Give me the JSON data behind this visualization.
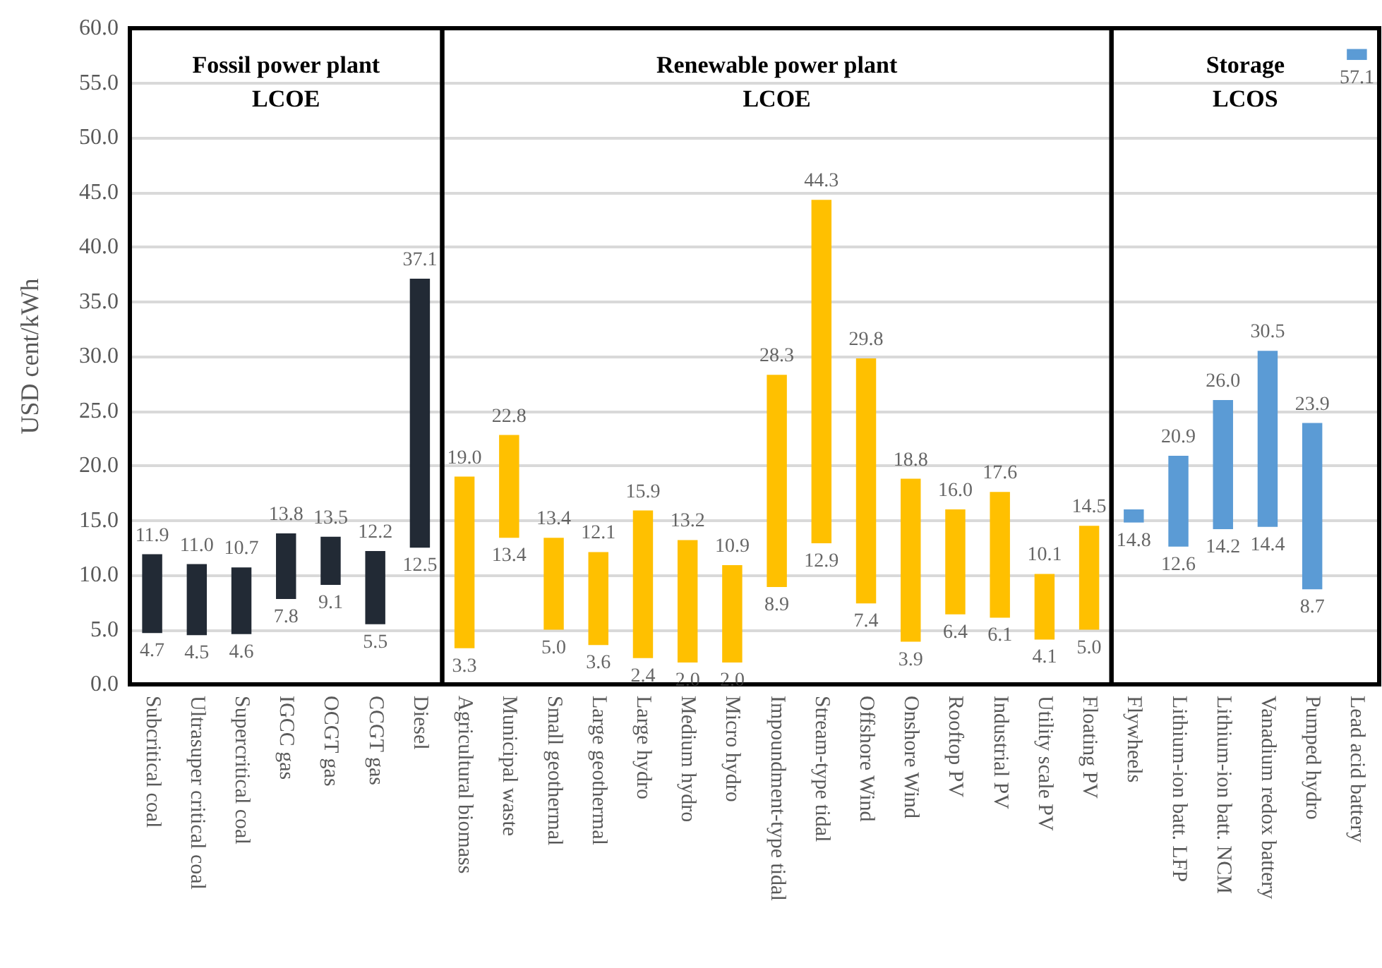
{
  "chart_data": {
    "type": "bar",
    "ylabel": "USD cent/kWh",
    "categories": [
      "Subcritical coal",
      "Ultrasuper critical coal",
      "Supercritical coal",
      "IGCC gas",
      "OCGT gas",
      "CCGT gas",
      "Diesel",
      "Agricultural biomass",
      "Municipal waste",
      "Small geothermal",
      "Large geothermal",
      "Large hydro",
      "Medium hydro",
      "Micro hydro",
      "Impoundment-type tidal",
      "Stream-type tidal",
      "Offshore Wind",
      "Onshore Wind",
      "Rooftop PV",
      "Industrial PV",
      "Utility scale PV",
      "Floating PV",
      "Flywheels",
      "Lithium-ion batt. LFP",
      "Lithium-ion batt. NCM",
      "Vanadium redox battery",
      "Pumped hydro",
      "Lead acid battery"
    ],
    "base": [
      4.7,
      4.5,
      4.6,
      7.8,
      9.1,
      5.5,
      12.5,
      3.3,
      13.4,
      5.0,
      3.6,
      2.4,
      2.0,
      2.0,
      8.9,
      12.9,
      7.4,
      3.9,
      6.4,
      6.1,
      4.1,
      5.0,
      14.8,
      12.6,
      14.2,
      14.4,
      8.7,
      57.1
    ],
    "values": [
      7.2,
      6.5,
      6.1,
      6.0,
      4.4,
      6.7,
      24.6,
      15.7,
      9.4,
      8.4,
      8.5,
      13.5,
      11.2,
      8.9,
      19.4,
      31.4,
      22.4,
      14.9,
      9.6,
      11.5,
      6.0,
      9.5,
      1.2,
      8.3,
      11.8,
      16.1,
      15.2,
      1.0
    ],
    "colors": [
      "#222a35",
      "#222a35",
      "#222a35",
      "#222a35",
      "#222a35",
      "#222a35",
      "#222a35",
      "#ffc000",
      "#ffc000",
      "#ffc000",
      "#ffc000",
      "#ffc000",
      "#ffc000",
      "#ffc000",
      "#ffc000",
      "#ffc000",
      "#ffc000",
      "#ffc000",
      "#ffc000",
      "#ffc000",
      "#ffc000",
      "#ffc000",
      "#5b9bd5",
      "#5b9bd5",
      "#5b9bd5",
      "#5b9bd5",
      "#5b9bd5",
      "#5b9bd5"
    ],
    "ylim": [
      0,
      60
    ],
    "yticks": [
      {
        "value": 0,
        "label": "0.0"
      },
      {
        "value": 5,
        "label": "5.0"
      },
      {
        "value": 10,
        "label": "10.0"
      },
      {
        "value": 15,
        "label": "15.0"
      },
      {
        "value": 20,
        "label": "20.0"
      },
      {
        "value": 25,
        "label": "25.0"
      },
      {
        "value": 30,
        "label": "30.0"
      },
      {
        "value": 35,
        "label": "35.0"
      },
      {
        "value": 40,
        "label": "40.0"
      },
      {
        "value": 45,
        "label": "45.0"
      },
      {
        "value": 50,
        "label": "50.0"
      },
      {
        "value": 55,
        "label": "55.0"
      },
      {
        "value": 60,
        "label": "60.0"
      }
    ],
    "grid": "y",
    "bands": [
      {
        "axis": "x",
        "from": "Subcritical coal",
        "to": "Diesel",
        "label": "Fossil power plant\nLCOE"
      },
      {
        "axis": "x",
        "from": "Agricultural biomass",
        "to": "Floating PV",
        "label": "Renewable power plant\nLCOE"
      },
      {
        "axis": "x",
        "from": "Flywheels",
        "to": "Lead acid battery",
        "label": "Storage\nLCOS"
      }
    ],
    "annotations": [
      {
        "text": "11.9",
        "x": "Subcritical coal",
        "y": 11.9
      },
      {
        "text": "4.7",
        "x": "Subcritical coal",
        "y": 4.7
      },
      {
        "text": "11.0",
        "x": "Ultrasuper critical coal",
        "y": 11.0
      },
      {
        "text": "4.5",
        "x": "Ultrasuper critical coal",
        "y": 4.5
      },
      {
        "text": "10.7",
        "x": "Supercritical coal",
        "y": 10.7
      },
      {
        "text": "4.6",
        "x": "Supercritical coal",
        "y": 4.6
      },
      {
        "text": "13.8",
        "x": "IGCC gas",
        "y": 13.8
      },
      {
        "text": "7.8",
        "x": "IGCC gas",
        "y": 7.8
      },
      {
        "text": "13.5",
        "x": "OCGT gas",
        "y": 13.5
      },
      {
        "text": "9.1",
        "x": "OCGT gas",
        "y": 9.1
      },
      {
        "text": "12.2",
        "x": "CCGT gas",
        "y": 12.2
      },
      {
        "text": "5.5",
        "x": "CCGT gas",
        "y": 5.5
      },
      {
        "text": "37.1",
        "x": "Diesel",
        "y": 37.1
      },
      {
        "text": "12.5",
        "x": "Diesel",
        "y": 12.5
      },
      {
        "text": "19.0",
        "x": "Agricultural biomass",
        "y": 19.0
      },
      {
        "text": "3.3",
        "x": "Agricultural biomass",
        "y": 3.3
      },
      {
        "text": "22.8",
        "x": "Municipal waste",
        "y": 22.8
      },
      {
        "text": "13.4",
        "x": "Municipal waste",
        "y": 13.4
      },
      {
        "text": "13.4",
        "x": "Small geothermal",
        "y": 13.4
      },
      {
        "text": "5.0",
        "x": "Small geothermal",
        "y": 5.0
      },
      {
        "text": "12.1",
        "x": "Large geothermal",
        "y": 12.1
      },
      {
        "text": "3.6",
        "x": "Large geothermal",
        "y": 3.6
      },
      {
        "text": "15.9",
        "x": "Large hydro",
        "y": 15.9
      },
      {
        "text": "2.4",
        "x": "Large hydro",
        "y": 2.4
      },
      {
        "text": "13.2",
        "x": "Medium hydro",
        "y": 13.2
      },
      {
        "text": "2.0",
        "x": "Medium hydro",
        "y": 2.0
      },
      {
        "text": "10.9",
        "x": "Micro hydro",
        "y": 10.9
      },
      {
        "text": "2.0",
        "x": "Micro hydro",
        "y": 2.0
      },
      {
        "text": "28.3",
        "x": "Impoundment-type tidal",
        "y": 28.3
      },
      {
        "text": "8.9",
        "x": "Impoundment-type tidal",
        "y": 8.9
      },
      {
        "text": "44.3",
        "x": "Stream-type tidal",
        "y": 44.3
      },
      {
        "text": "12.9",
        "x": "Stream-type tidal",
        "y": 12.9
      },
      {
        "text": "29.8",
        "x": "Offshore Wind",
        "y": 29.8
      },
      {
        "text": "7.4",
        "x": "Offshore Wind",
        "y": 7.4
      },
      {
        "text": "18.8",
        "x": "Onshore Wind",
        "y": 18.8
      },
      {
        "text": "3.9",
        "x": "Onshore Wind",
        "y": 3.9
      },
      {
        "text": "16.0",
        "x": "Rooftop PV",
        "y": 16.0
      },
      {
        "text": "6.4",
        "x": "Rooftop PV",
        "y": 6.4
      },
      {
        "text": "17.6",
        "x": "Industrial PV",
        "y": 17.6
      },
      {
        "text": "6.1",
        "x": "Industrial PV",
        "y": 6.1
      },
      {
        "text": "10.1",
        "x": "Utility scale PV",
        "y": 10.1
      },
      {
        "text": "4.1",
        "x": "Utility scale PV",
        "y": 4.1
      },
      {
        "text": "14.5",
        "x": "Floating PV",
        "y": 14.5
      },
      {
        "text": "5.0",
        "x": "Floating PV",
        "y": 5.0
      },
      {
        "text": "14.8",
        "x": "Flywheels",
        "y": 14.8
      },
      {
        "text": "20.9",
        "x": "Lithium-ion batt. LFP",
        "y": 20.9
      },
      {
        "text": "12.6",
        "x": "Lithium-ion batt. LFP",
        "y": 12.6
      },
      {
        "text": "26.0",
        "x": "Lithium-ion batt. NCM",
        "y": 26.0
      },
      {
        "text": "14.2",
        "x": "Lithium-ion batt. NCM",
        "y": 14.2
      },
      {
        "text": "30.5",
        "x": "Vanadium redox battery",
        "y": 30.5
      },
      {
        "text": "14.4",
        "x": "Vanadium redox battery",
        "y": 14.4
      },
      {
        "text": "23.9",
        "x": "Pumped hydro",
        "y": 23.9
      },
      {
        "text": "8.7",
        "x": "Pumped hydro",
        "y": 8.7
      },
      {
        "text": "57.1",
        "x": "Lead acid battery",
        "y": 57.1
      }
    ]
  }
}
